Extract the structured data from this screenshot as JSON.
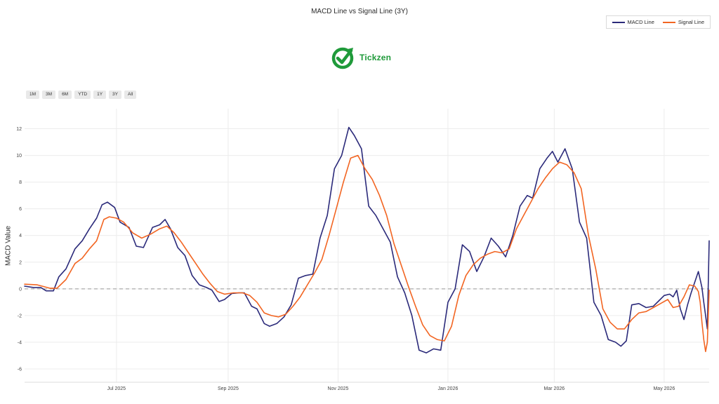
{
  "chart_data": {
    "type": "line",
    "title": "MACD Line vs Signal Line (3Y)",
    "ylabel": "MACD Value",
    "xlabel": "",
    "ylim": [
      -7,
      13.5
    ],
    "yticks": [
      -6,
      -4,
      -2,
      0,
      2,
      4,
      6,
      8,
      10,
      12
    ],
    "x_ticks": [
      {
        "label": "Jul 2025",
        "x": "2025-07-01"
      },
      {
        "label": "Sep 2025",
        "x": "2025-09-01"
      },
      {
        "label": "Nov 2025",
        "x": "2025-11-01"
      },
      {
        "label": "Jan 2026",
        "x": "2026-01-01"
      },
      {
        "label": "Mar 2026",
        "x": "2026-03-01"
      },
      {
        "label": "May 2026",
        "x": "2026-05-01"
      }
    ],
    "x_range": [
      "2025-05-11",
      "2026-05-26"
    ],
    "zero_line": {
      "y": 0,
      "style": "dashed",
      "color": "#999999"
    },
    "grid": true,
    "legend_position": "top-right",
    "series": [
      {
        "name": "MACD Line",
        "color": "#2b2a7a",
        "points": [
          [
            "2025-05-11",
            0.2
          ],
          [
            "2025-05-16",
            0.1
          ],
          [
            "2025-05-20",
            0.1
          ],
          [
            "2025-05-23",
            -0.15
          ],
          [
            "2025-05-27",
            -0.15
          ],
          [
            "2025-05-30",
            0.9
          ],
          [
            "2025-06-03",
            1.5
          ],
          [
            "2025-06-08",
            3.0
          ],
          [
            "2025-06-12",
            3.6
          ],
          [
            "2025-06-16",
            4.5
          ],
          [
            "2025-06-20",
            5.3
          ],
          [
            "2025-06-23",
            6.3
          ],
          [
            "2025-06-26",
            6.5
          ],
          [
            "2025-06-30",
            6.1
          ],
          [
            "2025-07-03",
            5.0
          ],
          [
            "2025-07-08",
            4.6
          ],
          [
            "2025-07-12",
            3.2
          ],
          [
            "2025-07-16",
            3.1
          ],
          [
            "2025-07-21",
            4.6
          ],
          [
            "2025-07-25",
            4.8
          ],
          [
            "2025-07-28",
            5.2
          ],
          [
            "2025-07-31",
            4.5
          ],
          [
            "2025-08-04",
            3.1
          ],
          [
            "2025-08-08",
            2.5
          ],
          [
            "2025-08-12",
            1.0
          ],
          [
            "2025-08-16",
            0.3
          ],
          [
            "2025-08-20",
            0.1
          ],
          [
            "2025-08-23",
            -0.1
          ],
          [
            "2025-08-27",
            -0.95
          ],
          [
            "2025-08-30",
            -0.8
          ],
          [
            "2025-09-03",
            -0.35
          ],
          [
            "2025-09-07",
            -0.3
          ],
          [
            "2025-09-10",
            -0.3
          ],
          [
            "2025-09-14",
            -1.3
          ],
          [
            "2025-09-17",
            -1.5
          ],
          [
            "2025-09-21",
            -2.6
          ],
          [
            "2025-09-24",
            -2.8
          ],
          [
            "2025-09-28",
            -2.6
          ],
          [
            "2025-10-02",
            -2.1
          ],
          [
            "2025-10-06",
            -1.2
          ],
          [
            "2025-10-10",
            0.8
          ],
          [
            "2025-10-14",
            1.0
          ],
          [
            "2025-10-18",
            1.1
          ],
          [
            "2025-10-22",
            3.8
          ],
          [
            "2025-10-26",
            5.5
          ],
          [
            "2025-10-30",
            9.0
          ],
          [
            "2025-11-03",
            10.0
          ],
          [
            "2025-11-07",
            12.1
          ],
          [
            "2025-11-10",
            11.5
          ],
          [
            "2025-11-14",
            10.5
          ],
          [
            "2025-11-18",
            6.2
          ],
          [
            "2025-11-22",
            5.5
          ],
          [
            "2025-11-26",
            4.5
          ],
          [
            "2025-11-30",
            3.5
          ],
          [
            "2025-12-04",
            0.9
          ],
          [
            "2025-12-08",
            -0.3
          ],
          [
            "2025-12-12",
            -2.0
          ],
          [
            "2025-12-16",
            -4.6
          ],
          [
            "2025-12-20",
            -4.8
          ],
          [
            "2025-12-24",
            -4.5
          ],
          [
            "2025-12-28",
            -4.6
          ],
          [
            "2026-01-01",
            -1.0
          ],
          [
            "2026-01-05",
            0.0
          ],
          [
            "2026-01-09",
            3.3
          ],
          [
            "2026-01-13",
            2.8
          ],
          [
            "2026-01-17",
            1.3
          ],
          [
            "2026-01-21",
            2.4
          ],
          [
            "2026-01-25",
            3.8
          ],
          [
            "2026-01-29",
            3.2
          ],
          [
            "2026-02-02",
            2.4
          ],
          [
            "2026-02-06",
            4.0
          ],
          [
            "2026-02-10",
            6.2
          ],
          [
            "2026-02-14",
            7.0
          ],
          [
            "2026-02-17",
            6.8
          ],
          [
            "2026-02-21",
            9.0
          ],
          [
            "2026-02-25",
            9.8
          ],
          [
            "2026-02-28",
            10.3
          ],
          [
            "2026-03-03",
            9.5
          ],
          [
            "2026-03-07",
            10.5
          ],
          [
            "2026-03-11",
            9.0
          ],
          [
            "2026-03-15",
            5.0
          ],
          [
            "2026-03-19",
            3.8
          ],
          [
            "2026-03-23",
            -1.0
          ],
          [
            "2026-03-27",
            -2.0
          ],
          [
            "2026-03-31",
            -3.8
          ],
          [
            "2026-04-04",
            -4.0
          ],
          [
            "2026-04-07",
            -4.3
          ],
          [
            "2026-04-10",
            -3.9
          ],
          [
            "2026-04-13",
            -1.2
          ],
          [
            "2026-04-17",
            -1.1
          ],
          [
            "2026-04-21",
            -1.4
          ],
          [
            "2026-04-25",
            -1.3
          ],
          [
            "2026-04-28",
            -0.9
          ],
          [
            "2026-05-01",
            -0.5
          ],
          [
            "2026-05-04",
            -0.4
          ],
          [
            "2026-05-06",
            -0.6
          ],
          [
            "2026-05-08",
            -0.1
          ],
          [
            "2026-05-10",
            -1.5
          ],
          [
            "2026-05-12",
            -2.3
          ],
          [
            "2026-05-14",
            -1.2
          ],
          [
            "2026-05-16",
            -0.3
          ],
          [
            "2026-05-18",
            0.5
          ],
          [
            "2026-05-20",
            1.3
          ],
          [
            "2026-05-21",
            0.7
          ],
          [
            "2026-05-22",
            0.1
          ],
          [
            "2026-05-23",
            -1.0
          ],
          [
            "2026-05-24",
            -2.0
          ],
          [
            "2026-05-25",
            -3.0
          ],
          [
            "2026-05-26",
            3.6
          ]
        ]
      },
      {
        "name": "Signal Line",
        "color": "#f26522",
        "points": [
          [
            "2025-05-11",
            0.35
          ],
          [
            "2025-05-18",
            0.3
          ],
          [
            "2025-05-25",
            0.05
          ],
          [
            "2025-05-29",
            0.05
          ],
          [
            "2025-06-03",
            0.7
          ],
          [
            "2025-06-08",
            1.9
          ],
          [
            "2025-06-12",
            2.3
          ],
          [
            "2025-06-16",
            3.0
          ],
          [
            "2025-06-20",
            3.6
          ],
          [
            "2025-06-24",
            5.2
          ],
          [
            "2025-06-27",
            5.4
          ],
          [
            "2025-07-01",
            5.3
          ],
          [
            "2025-07-05",
            5.0
          ],
          [
            "2025-07-10",
            4.2
          ],
          [
            "2025-07-15",
            3.8
          ],
          [
            "2025-07-20",
            4.1
          ],
          [
            "2025-07-25",
            4.5
          ],
          [
            "2025-07-29",
            4.7
          ],
          [
            "2025-08-02",
            4.2
          ],
          [
            "2025-08-06",
            3.5
          ],
          [
            "2025-08-10",
            2.7
          ],
          [
            "2025-08-14",
            1.9
          ],
          [
            "2025-08-18",
            1.1
          ],
          [
            "2025-08-22",
            0.4
          ],
          [
            "2025-08-26",
            -0.2
          ],
          [
            "2025-08-30",
            -0.4
          ],
          [
            "2025-09-04",
            -0.3
          ],
          [
            "2025-09-09",
            -0.3
          ],
          [
            "2025-09-13",
            -0.5
          ],
          [
            "2025-09-17",
            -1.0
          ],
          [
            "2025-09-21",
            -1.8
          ],
          [
            "2025-09-25",
            -2.0
          ],
          [
            "2025-09-29",
            -2.1
          ],
          [
            "2025-10-03",
            -1.9
          ],
          [
            "2025-10-07",
            -1.3
          ],
          [
            "2025-10-11",
            -0.6
          ],
          [
            "2025-10-15",
            0.3
          ],
          [
            "2025-10-19",
            1.2
          ],
          [
            "2025-10-23",
            2.2
          ],
          [
            "2025-10-27",
            4.0
          ],
          [
            "2025-10-31",
            6.0
          ],
          [
            "2025-11-04",
            8.0
          ],
          [
            "2025-11-08",
            9.8
          ],
          [
            "2025-11-12",
            10.0
          ],
          [
            "2025-11-16",
            9.0
          ],
          [
            "2025-11-20",
            8.2
          ],
          [
            "2025-11-24",
            7.0
          ],
          [
            "2025-11-28",
            5.5
          ],
          [
            "2025-12-02",
            3.4
          ],
          [
            "2025-12-06",
            1.8
          ],
          [
            "2025-12-10",
            0.2
          ],
          [
            "2025-12-14",
            -1.3
          ],
          [
            "2025-12-18",
            -2.7
          ],
          [
            "2025-12-22",
            -3.5
          ],
          [
            "2025-12-26",
            -3.8
          ],
          [
            "2025-12-30",
            -3.9
          ],
          [
            "2026-01-03",
            -2.8
          ],
          [
            "2026-01-07",
            -0.5
          ],
          [
            "2026-01-11",
            1.0
          ],
          [
            "2026-01-15",
            1.8
          ],
          [
            "2026-01-19",
            2.3
          ],
          [
            "2026-01-23",
            2.6
          ],
          [
            "2026-01-27",
            2.8
          ],
          [
            "2026-01-31",
            2.7
          ],
          [
            "2026-02-04",
            3.0
          ],
          [
            "2026-02-08",
            4.5
          ],
          [
            "2026-02-12",
            5.5
          ],
          [
            "2026-02-16",
            6.5
          ],
          [
            "2026-02-20",
            7.5
          ],
          [
            "2026-02-24",
            8.3
          ],
          [
            "2026-02-28",
            9.0
          ],
          [
            "2026-03-04",
            9.5
          ],
          [
            "2026-03-08",
            9.3
          ],
          [
            "2026-03-12",
            8.7
          ],
          [
            "2026-03-16",
            7.5
          ],
          [
            "2026-03-20",
            4.0
          ],
          [
            "2026-03-24",
            1.5
          ],
          [
            "2026-03-28",
            -1.5
          ],
          [
            "2026-04-01",
            -2.5
          ],
          [
            "2026-04-05",
            -3.0
          ],
          [
            "2026-04-09",
            -3.0
          ],
          [
            "2026-04-13",
            -2.3
          ],
          [
            "2026-04-17",
            -1.8
          ],
          [
            "2026-04-21",
            -1.7
          ],
          [
            "2026-04-25",
            -1.4
          ],
          [
            "2026-04-29",
            -1.1
          ],
          [
            "2026-05-03",
            -0.8
          ],
          [
            "2026-05-06",
            -1.4
          ],
          [
            "2026-05-09",
            -1.3
          ],
          [
            "2026-05-12",
            -0.6
          ],
          [
            "2026-05-15",
            0.3
          ],
          [
            "2026-05-18",
            0.2
          ],
          [
            "2026-05-20",
            -0.2
          ],
          [
            "2026-05-21",
            -1.0
          ],
          [
            "2026-05-22",
            -2.5
          ],
          [
            "2026-05-23",
            -3.8
          ],
          [
            "2026-05-24",
            -4.7
          ],
          [
            "2026-05-25",
            -4.0
          ],
          [
            "2026-05-26",
            -0.1
          ]
        ]
      }
    ]
  },
  "legend": {
    "items": [
      {
        "label": "MACD Line",
        "color": "#2b2a7a"
      },
      {
        "label": "Signal Line",
        "color": "#f26522"
      }
    ]
  },
  "logo": {
    "text": "Tickzen",
    "color": "#1f9a3a",
    "icon": "checkmark-arrow-icon"
  },
  "range_buttons": [
    "1M",
    "3M",
    "6M",
    "YTD",
    "1Y",
    "3Y",
    "All"
  ]
}
